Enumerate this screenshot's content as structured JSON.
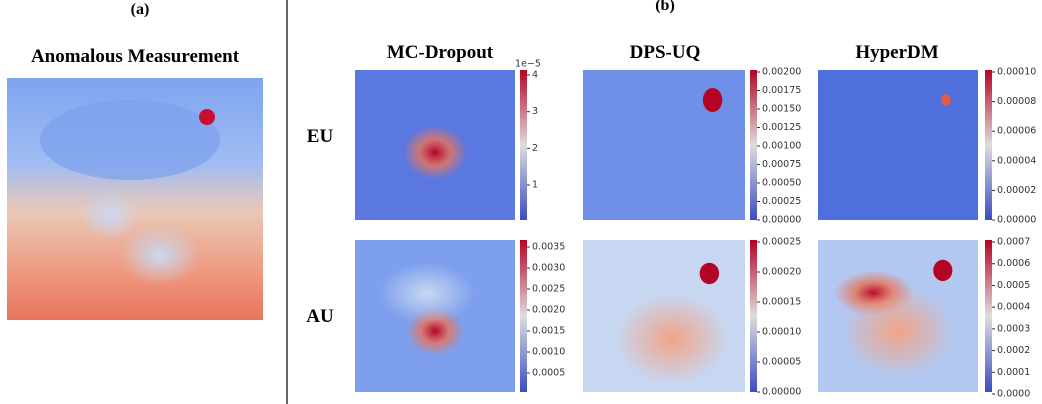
{
  "panel_a": {
    "label": "(a)",
    "title": "Anomalous Measurement"
  },
  "panel_b": {
    "label": "(b)",
    "columns": [
      "MC-Dropout",
      "DPS-UQ",
      "HyperDM"
    ],
    "rows": [
      "EU",
      "AU"
    ],
    "colorbars": [
      [
        {
          "offset": "1e−5",
          "ticks": [
            "1",
            "2",
            "3",
            "4"
          ]
        },
        {
          "ticks": [
            "0.00000",
            "0.00025",
            "0.00050",
            "0.00075",
            "0.00100",
            "0.00125",
            "0.00150",
            "0.00175",
            "0.00200"
          ]
        },
        {
          "ticks": [
            "0.00000",
            "0.00002",
            "0.00004",
            "0.00006",
            "0.00008",
            "0.00010"
          ]
        }
      ],
      [
        {
          "ticks": [
            "0.0005",
            "0.0010",
            "0.0015",
            "0.0020",
            "0.0025",
            "0.0030",
            "0.0035"
          ]
        },
        {
          "ticks": [
            "0.00000",
            "0.00005",
            "0.00010",
            "0.00015",
            "0.00020",
            "0.00025"
          ]
        },
        {
          "ticks": [
            "0.0000",
            "0.0001",
            "0.0002",
            "0.0003",
            "0.0004",
            "0.0005",
            "0.0006",
            "0.0007"
          ]
        }
      ]
    ]
  }
}
